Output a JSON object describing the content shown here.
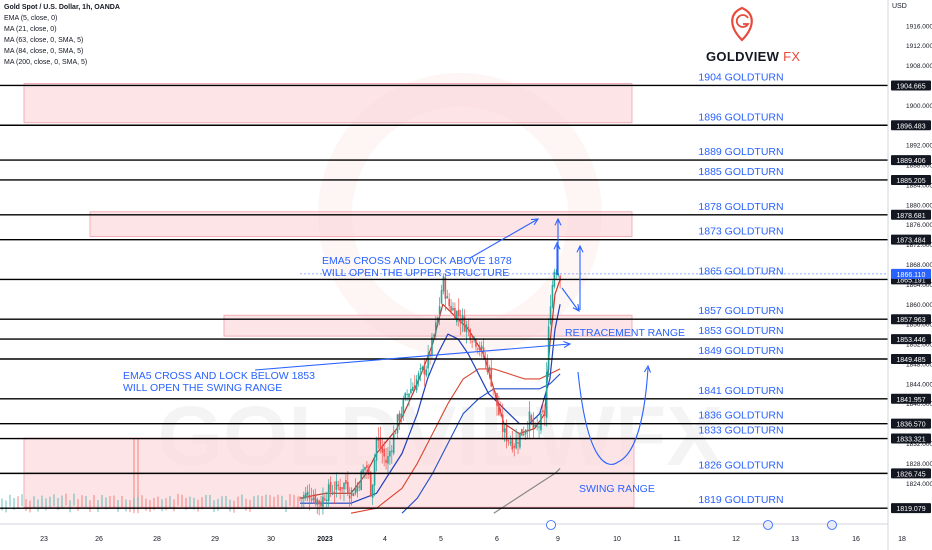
{
  "header": {
    "title": "Gold Spot / U.S. Dollar, 1h, OANDA",
    "indicators": [
      "EMA (5, close, 0)",
      "MA (21, close, 0)",
      "MA (63, close, 0, SMA, 5)",
      "MA (84, close, 0, SMA, 5)",
      "MA (200, close, 0, SMA, 5)"
    ]
  },
  "brand": {
    "name": "GOLDVIEW",
    "suffix": "FX",
    "watermark": "GOLDVIEWFX",
    "accent": "#e84a3c"
  },
  "currency": "USD",
  "colors": {
    "line": "#000000",
    "zone": "#fbd9dd",
    "zone_border": "#f0a0aa",
    "annotation": "#2962ff",
    "candle_up": "#26a69a",
    "candle_down": "#ef5350",
    "ema5": "#c0392b",
    "ma21": "#1f3fbf",
    "ma63": "#d9442e",
    "ma200": "#888888"
  },
  "annotations": {
    "upper_line1": "EMA5 CROSS AND LOCK ABOVE 1878",
    "upper_line2": "WILL OPEN THE UPPER STRUCTURE",
    "lower_line1": "EMA5 CROSS AND LOCK BELOW 1853",
    "lower_line2": "WILL OPEN THE SWING RANGE",
    "retracement": "RETRACEMENT RANGE",
    "swing": "SWING RANGE"
  },
  "chart_data": {
    "type": "candlestick",
    "y_axis": {
      "min": 1818,
      "max": 1918,
      "ticks": [
        1916,
        1912,
        1908,
        1900,
        1892,
        1888,
        1884,
        1880,
        1876,
        1872,
        1868,
        1864,
        1860,
        1856,
        1852,
        1848,
        1844,
        1840,
        1832,
        1828,
        1824
      ]
    },
    "x_axis": {
      "ticks": [
        "23",
        "26",
        "28",
        "29",
        "30",
        "2023",
        "4",
        "5",
        "6",
        "9",
        "10",
        "11",
        "12",
        "13",
        "16",
        "18"
      ]
    },
    "levels": [
      {
        "value": 1904,
        "label": "1904 GOLDTURN",
        "price": "1904.665"
      },
      {
        "value": 1896,
        "label": "1896 GOLDTURN",
        "price": "1896.483"
      },
      {
        "value": 1889,
        "label": "1889 GOLDTURN",
        "price": "1889.406"
      },
      {
        "value": 1885,
        "label": "1885 GOLDTURN",
        "price": "1885.205"
      },
      {
        "value": 1878,
        "label": "1878 GOLDTURN",
        "price": "1878.681"
      },
      {
        "value": 1873,
        "label": "1873 GOLDTURN",
        "price": "1873.484"
      },
      {
        "value": 1865,
        "label": "1865 GOLDTURN",
        "price": "1865.191"
      },
      {
        "value": 1857,
        "label": "1857 GOLDTURN",
        "price": "1857.963"
      },
      {
        "value": 1853,
        "label": "1853 GOLDTURN",
        "price": "1853.446"
      },
      {
        "value": 1849,
        "label": "1849 GOLDTURN",
        "price": "1849.485"
      },
      {
        "value": 1841,
        "label": "1841 GOLDTURN",
        "price": "1841.957"
      },
      {
        "value": 1836,
        "label": "1836 GOLDTURN",
        "price": "1836.570"
      },
      {
        "value": 1833,
        "label": "1833 GOLDTURN",
        "price": "1833.321"
      },
      {
        "value": 1826,
        "label": "1826 GOLDTURN",
        "price": "1826.745"
      },
      {
        "value": 1819,
        "label": "1819 GOLDTURN",
        "price": "1819.079"
      }
    ],
    "current_price": "1866.110",
    "zones": [
      {
        "from": 1896.5,
        "to": 1904.4
      },
      {
        "from": 1873.6,
        "to": 1878.6
      },
      {
        "from": 1853.6,
        "to": 1857.8
      },
      {
        "from": 1819.2,
        "to": 1833.1
      }
    ],
    "close_path": [
      [
        0,
        1821
      ],
      [
        4,
        1822
      ],
      [
        8,
        1820
      ],
      [
        10,
        1822
      ],
      [
        14,
        1823
      ],
      [
        18,
        1824
      ],
      [
        20,
        1822
      ],
      [
        22,
        1823
      ],
      [
        26,
        1828
      ],
      [
        28,
        1822
      ],
      [
        30,
        1833
      ],
      [
        34,
        1828
      ],
      [
        38,
        1836
      ],
      [
        42,
        1842
      ],
      [
        46,
        1845
      ],
      [
        50,
        1848
      ],
      [
        54,
        1857
      ],
      [
        56,
        1865
      ],
      [
        58,
        1860
      ],
      [
        62,
        1858
      ],
      [
        66,
        1855
      ],
      [
        70,
        1852
      ],
      [
        74,
        1847
      ],
      [
        78,
        1838
      ],
      [
        80,
        1834
      ],
      [
        84,
        1832
      ],
      [
        88,
        1835
      ],
      [
        90,
        1837
      ],
      [
        92,
        1834
      ],
      [
        94,
        1836
      ],
      [
        96,
        1838
      ],
      [
        98,
        1860
      ],
      [
        100,
        1868
      ],
      [
        102,
        1866
      ]
    ],
    "ema5_path": [
      [
        0,
        1821
      ],
      [
        10,
        1822
      ],
      [
        20,
        1822
      ],
      [
        26,
        1826
      ],
      [
        30,
        1830
      ],
      [
        38,
        1835
      ],
      [
        46,
        1844
      ],
      [
        52,
        1852
      ],
      [
        56,
        1860
      ],
      [
        60,
        1858
      ],
      [
        66,
        1855
      ],
      [
        72,
        1850
      ],
      [
        76,
        1843
      ],
      [
        80,
        1836
      ],
      [
        86,
        1834
      ],
      [
        92,
        1835
      ],
      [
        96,
        1838
      ],
      [
        98,
        1852
      ],
      [
        100,
        1862
      ],
      [
        102,
        1865
      ]
    ],
    "ma21_path": [
      [
        0,
        1820
      ],
      [
        20,
        1820
      ],
      [
        30,
        1822
      ],
      [
        40,
        1830
      ],
      [
        46,
        1838
      ],
      [
        50,
        1845
      ],
      [
        54,
        1850
      ],
      [
        58,
        1854
      ],
      [
        62,
        1853
      ],
      [
        66,
        1850
      ],
      [
        70,
        1846
      ],
      [
        74,
        1842
      ],
      [
        78,
        1840
      ],
      [
        82,
        1838
      ],
      [
        86,
        1836
      ],
      [
        90,
        1836
      ],
      [
        94,
        1838
      ],
      [
        98,
        1845
      ],
      [
        100,
        1855
      ],
      [
        102,
        1860
      ]
    ],
    "ma63_path": [
      [
        20,
        1818
      ],
      [
        30,
        1819
      ],
      [
        40,
        1823
      ],
      [
        46,
        1828
      ],
      [
        52,
        1834
      ],
      [
        58,
        1840
      ],
      [
        64,
        1845
      ],
      [
        70,
        1847
      ],
      [
        76,
        1847
      ],
      [
        82,
        1846
      ],
      [
        88,
        1845
      ],
      [
        94,
        1845
      ],
      [
        98,
        1846
      ],
      [
        102,
        1847
      ]
    ],
    "ma84_path": [
      [
        40,
        1818
      ],
      [
        46,
        1821
      ],
      [
        52,
        1826
      ],
      [
        58,
        1832
      ],
      [
        64,
        1838
      ],
      [
        70,
        1841
      ],
      [
        76,
        1843
      ],
      [
        82,
        1843
      ],
      [
        88,
        1843
      ],
      [
        94,
        1843
      ],
      [
        98,
        1844
      ],
      [
        102,
        1846
      ]
    ],
    "ma200_path": [
      [
        76,
        1818
      ],
      [
        82,
        1820
      ],
      [
        88,
        1822
      ],
      [
        94,
        1824
      ],
      [
        100,
        1826
      ],
      [
        102,
        1827
      ]
    ]
  }
}
